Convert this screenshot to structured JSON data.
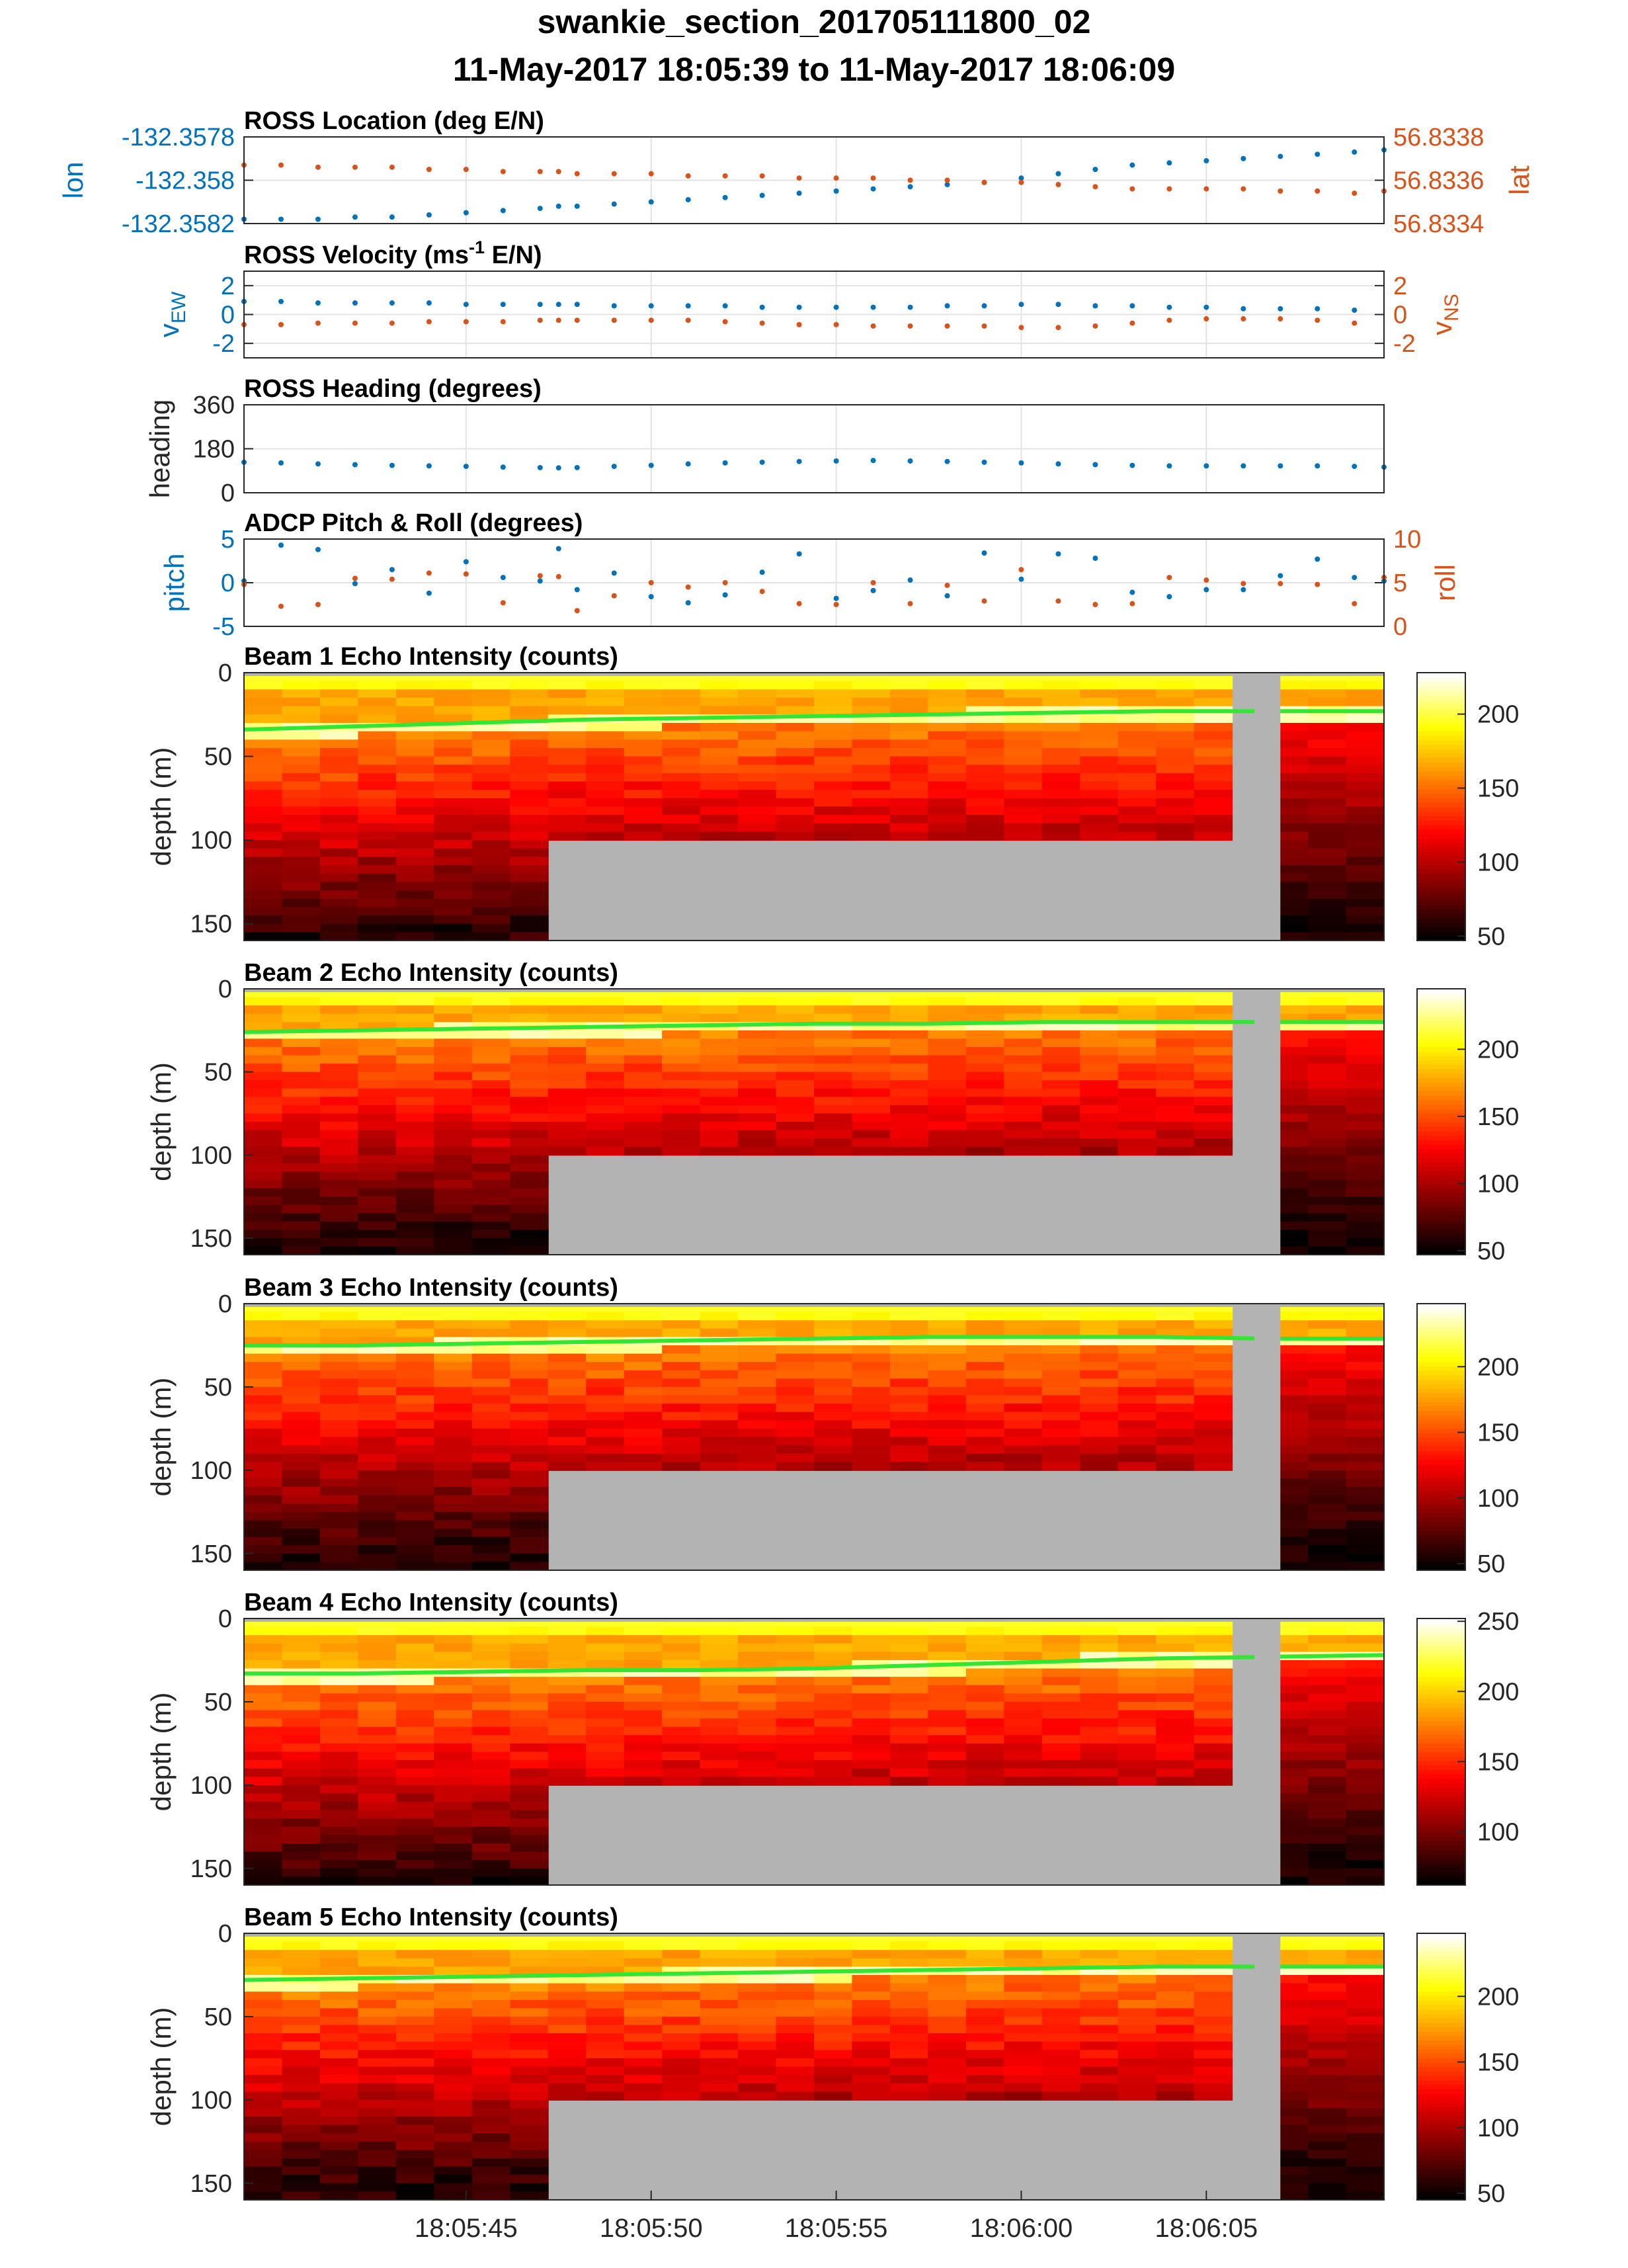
{
  "figure": {
    "title_line1": "swankie_section_201705111800_02",
    "title_line2": "11-May-2017 18:05:39 to 11-May-2017 18:06:09"
  },
  "colors": {
    "series_blue": "#0072BD",
    "series_orange": "#D95319",
    "nodata_gray": "#b3b3b3",
    "grid": "#e3e3e3",
    "surface_line": "#33e633"
  },
  "time_axis": {
    "t0_label": "18:05:39",
    "t1_label": "18:06:09",
    "tick_labels": [
      "18:05:45",
      "18:05:50",
      "18:05:55",
      "18:06:00",
      "18:06:05"
    ],
    "tick_seconds": [
      45,
      50,
      55,
      60,
      65
    ]
  },
  "chart_data": [
    {
      "id": "location",
      "type": "scatter",
      "title": "ROSS Location (deg E/N)",
      "ylabel_left": "lon",
      "ylabel_right": "lat",
      "yticks_left": [
        "-132.3578",
        "-132.358",
        "-132.3582"
      ],
      "yticks_left_values": [
        -132.3578,
        -132.358,
        -132.3582
      ],
      "yticks_right": [
        "56.8338",
        "56.8336",
        "56.8334"
      ],
      "yticks_right_values": [
        56.8338,
        56.8336,
        56.8334
      ],
      "ylim_left": [
        -132.3582,
        -132.3578
      ],
      "ylim_right": [
        56.8334,
        56.8338
      ],
      "x_seconds": [
        39,
        40,
        41,
        42,
        43,
        44,
        45,
        46,
        47,
        47.5,
        48,
        49,
        50,
        51,
        52,
        53,
        54,
        55,
        56,
        57,
        58,
        59,
        60,
        61,
        62,
        63,
        64,
        65,
        66,
        67,
        68,
        69,
        69.8
      ],
      "series": [
        {
          "name": "lon",
          "axis": "left",
          "values": [
            -132.35818,
            -132.35818,
            -132.35818,
            -132.35817,
            -132.35817,
            -132.35816,
            -132.35815,
            -132.35814,
            -132.35813,
            -132.35812,
            -132.35812,
            -132.35811,
            -132.3581,
            -132.35809,
            -132.35808,
            -132.35807,
            -132.35806,
            -132.35805,
            -132.35804,
            -132.35803,
            -132.35802,
            -132.35801,
            -132.35799,
            -132.35797,
            -132.35795,
            -132.35793,
            -132.35792,
            -132.35791,
            -132.3579,
            -132.35789,
            -132.35788,
            -132.35787,
            -132.35786
          ]
        },
        {
          "name": "lat",
          "axis": "right",
          "values": [
            56.83367,
            56.83367,
            56.83366,
            56.83366,
            56.83366,
            56.83365,
            56.83365,
            56.83364,
            56.83364,
            56.83364,
            56.83363,
            56.83363,
            56.83363,
            56.83362,
            56.83362,
            56.83362,
            56.83361,
            56.83361,
            56.83361,
            56.8336,
            56.8336,
            56.83359,
            56.83359,
            56.83358,
            56.83357,
            56.83356,
            56.83356,
            56.83356,
            56.83356,
            56.83355,
            56.83355,
            56.83354,
            56.83355
          ]
        }
      ]
    },
    {
      "id": "velocity",
      "type": "scatter",
      "title_prefix": "ROSS Velocity (ms",
      "title_sup": "-1",
      "title_suffix": " E/N)",
      "ylabel_left": "v",
      "ylabel_left_sub": "EW",
      "ylabel_right": "v",
      "ylabel_right_sub": "NS",
      "yticks_left": [
        "2",
        "0",
        "-2"
      ],
      "yticks_left_values": [
        2,
        0,
        -2
      ],
      "yticks_right": [
        "2",
        "0",
        "-2"
      ],
      "yticks_right_values": [
        2,
        0,
        -2
      ],
      "ylim": [
        -3,
        3
      ],
      "x_seconds": [
        39,
        40,
        41,
        42,
        43,
        44,
        45,
        46,
        47,
        47.5,
        48,
        49,
        50,
        51,
        52,
        53,
        54,
        55,
        56,
        57,
        58,
        59,
        60,
        61,
        62,
        63,
        64,
        65,
        66,
        67,
        68,
        69
      ],
      "series": [
        {
          "name": "vEW",
          "axis": "left",
          "values": [
            0.9,
            0.9,
            0.8,
            0.8,
            0.8,
            0.8,
            0.7,
            0.7,
            0.7,
            0.7,
            0.7,
            0.6,
            0.6,
            0.6,
            0.6,
            0.5,
            0.5,
            0.5,
            0.5,
            0.5,
            0.6,
            0.6,
            0.7,
            0.7,
            0.6,
            0.6,
            0.5,
            0.5,
            0.4,
            0.4,
            0.4,
            0.3
          ]
        },
        {
          "name": "vNS",
          "axis": "right",
          "values": [
            -0.7,
            -0.7,
            -0.6,
            -0.6,
            -0.6,
            -0.5,
            -0.5,
            -0.5,
            -0.4,
            -0.4,
            -0.4,
            -0.4,
            -0.4,
            -0.4,
            -0.5,
            -0.6,
            -0.7,
            -0.7,
            -0.8,
            -0.8,
            -0.8,
            -0.8,
            -0.9,
            -0.9,
            -0.8,
            -0.6,
            -0.4,
            -0.3,
            -0.3,
            -0.3,
            -0.4,
            -0.6
          ]
        }
      ]
    },
    {
      "id": "heading",
      "type": "scatter",
      "title": "ROSS Heading (degrees)",
      "ylabel_left": "heading",
      "yticks_left": [
        "360",
        "180",
        "0"
      ],
      "yticks_left_values": [
        360,
        180,
        0
      ],
      "ylim": [
        0,
        360
      ],
      "x_seconds": [
        39,
        40,
        41,
        42,
        43,
        44,
        45,
        46,
        47,
        47.5,
        48,
        49,
        50,
        51,
        52,
        53,
        54,
        55,
        56,
        57,
        58,
        59,
        60,
        61,
        62,
        63,
        64,
        65,
        66,
        67,
        68,
        69,
        69.8
      ],
      "series": [
        {
          "name": "heading",
          "axis": "left",
          "values": [
            125,
            122,
            118,
            115,
            112,
            110,
            108,
            105,
            103,
            102,
            103,
            108,
            112,
            118,
            122,
            125,
            128,
            130,
            132,
            130,
            128,
            125,
            122,
            118,
            115,
            112,
            110,
            110,
            110,
            110,
            110,
            108,
            105
          ]
        }
      ]
    },
    {
      "id": "pitchroll",
      "type": "scatter",
      "title": "ADCP Pitch & Roll (degrees)",
      "ylabel_left": "pitch",
      "ylabel_right": "roll",
      "yticks_left": [
        "5",
        "0",
        "-5"
      ],
      "yticks_left_values": [
        5,
        0,
        -5
      ],
      "yticks_right": [
        "10",
        "5",
        "0"
      ],
      "yticks_right_values": [
        10,
        5,
        0
      ],
      "ylim_left": [
        -5,
        5
      ],
      "ylim_right": [
        0,
        10
      ],
      "x_seconds": [
        39,
        40,
        41,
        42,
        43,
        44,
        45,
        46,
        47,
        47.5,
        48,
        49,
        50,
        51,
        52,
        53,
        54,
        55,
        56,
        57,
        58,
        59,
        60,
        61,
        62,
        63,
        64,
        65,
        66,
        67,
        68,
        69,
        69.8
      ],
      "series": [
        {
          "name": "pitch",
          "axis": "left",
          "values": [
            0.2,
            4.3,
            3.8,
            -0.1,
            1.5,
            -1.2,
            2.4,
            0.6,
            0.2,
            3.9,
            -0.8,
            1.1,
            -1.6,
            -2.3,
            -1.4,
            1.2,
            3.3,
            -1.8,
            -0.9,
            0.3,
            -1.5,
            3.4,
            0.4,
            3.3,
            2.8,
            -1.1,
            -1.6,
            -0.8,
            -0.8,
            0.8,
            2.7,
            0.6,
            0.2
          ]
        },
        {
          "name": "roll",
          "axis": "right",
          "values": [
            4.8,
            2.3,
            2.5,
            5.5,
            5.4,
            6.1,
            6.0,
            2.7,
            5.8,
            5.7,
            1.8,
            3.5,
            5.0,
            4.5,
            5.0,
            4.0,
            2.6,
            2.5,
            5.0,
            2.6,
            4.7,
            2.9,
            6.5,
            2.9,
            2.5,
            2.6,
            5.6,
            5.3,
            4.9,
            4.9,
            4.8,
            2.6,
            5.6
          ]
        }
      ]
    },
    {
      "id": "beam1",
      "type": "heatmap",
      "title": "Beam 1 Echo Intensity (counts)",
      "ylabel": "depth (m)",
      "yticks": [
        "0",
        "50",
        "100",
        "150"
      ],
      "yticks_values": [
        0,
        50,
        100,
        150
      ],
      "ylim": [
        0,
        160
      ],
      "colorbar_ticks": [
        "200",
        "150",
        "100",
        "50"
      ],
      "colorbar_values": [
        200,
        150,
        100,
        50
      ],
      "clim": [
        47,
        228
      ],
      "surface_depth_m": [
        34,
        32,
        30,
        28,
        27,
        26,
        25,
        24,
        23,
        23,
        23
      ],
      "seed": 11
    },
    {
      "id": "beam2",
      "type": "heatmap",
      "title": "Beam 2 Echo Intensity (counts)",
      "ylabel": "depth (m)",
      "yticks": [
        "0",
        "50",
        "100",
        "150"
      ],
      "yticks_values": [
        0,
        50,
        100,
        150
      ],
      "ylim": [
        0,
        160
      ],
      "colorbar_ticks": [
        "200",
        "150",
        "100",
        "50"
      ],
      "colorbar_values": [
        200,
        150,
        100,
        50
      ],
      "clim": [
        47,
        245
      ],
      "surface_depth_m": [
        26,
        25,
        24,
        23,
        22,
        21,
        21,
        20,
        20,
        20,
        20
      ],
      "seed": 22
    },
    {
      "id": "beam3",
      "type": "heatmap",
      "title": "Beam 3 Echo Intensity (counts)",
      "ylabel": "depth (m)",
      "yticks": [
        "0",
        "50",
        "100",
        "150"
      ],
      "yticks_values": [
        0,
        50,
        100,
        150
      ],
      "ylim": [
        0,
        160
      ],
      "colorbar_ticks": [
        "200",
        "150",
        "100",
        "50"
      ],
      "colorbar_values": [
        200,
        150,
        100,
        50
      ],
      "clim": [
        45,
        248
      ],
      "surface_depth_m": [
        25,
        25,
        24,
        23,
        22,
        21,
        20,
        20,
        20,
        21,
        21
      ],
      "seed": 33
    },
    {
      "id": "beam4",
      "type": "heatmap",
      "title": "Beam 4 Echo Intensity (counts)",
      "ylabel": "depth (m)",
      "yticks": [
        "0",
        "50",
        "100",
        "150"
      ],
      "yticks_values": [
        0,
        50,
        100,
        150
      ],
      "ylim": [
        0,
        160
      ],
      "colorbar_ticks": [
        "250",
        "200",
        "150",
        "100"
      ],
      "colorbar_values": [
        250,
        200,
        150,
        100
      ],
      "clim": [
        62,
        252
      ],
      "surface_depth_m": [
        33,
        33,
        32,
        31,
        31,
        30,
        28,
        26,
        24,
        23,
        22
      ],
      "seed": 44
    },
    {
      "id": "beam5",
      "type": "heatmap",
      "title": "Beam 5 Echo Intensity (counts)",
      "ylabel": "depth (m)",
      "yticks": [
        "0",
        "50",
        "100",
        "150"
      ],
      "yticks_values": [
        0,
        50,
        100,
        150
      ],
      "ylim": [
        0,
        160
      ],
      "colorbar_ticks": [
        "200",
        "150",
        "100",
        "50"
      ],
      "colorbar_values": [
        200,
        150,
        100,
        50
      ],
      "clim": [
        45,
        248
      ],
      "surface_depth_m": [
        28,
        27,
        26,
        25,
        24,
        23,
        22,
        21,
        20,
        20,
        20
      ],
      "seed": 55
    }
  ]
}
